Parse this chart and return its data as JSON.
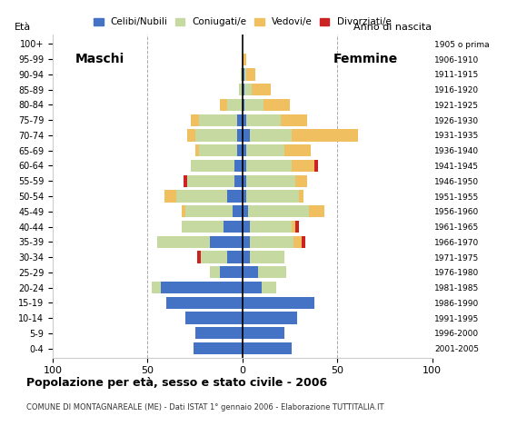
{
  "age_groups": [
    "0-4",
    "5-9",
    "10-14",
    "15-19",
    "20-24",
    "25-29",
    "30-34",
    "35-39",
    "40-44",
    "45-49",
    "50-54",
    "55-59",
    "60-64",
    "65-69",
    "70-74",
    "75-79",
    "80-84",
    "85-89",
    "90-94",
    "95-99",
    "100+"
  ],
  "birth_years": [
    "2001-2005",
    "1996-2000",
    "1991-1995",
    "1986-1990",
    "1981-1985",
    "1976-1980",
    "1971-1975",
    "1966-1970",
    "1961-1965",
    "1956-1960",
    "1951-1955",
    "1946-1950",
    "1941-1945",
    "1936-1940",
    "1931-1935",
    "1926-1930",
    "1921-1925",
    "1916-1920",
    "1911-1915",
    "1906-1910",
    "1905 o prima"
  ],
  "males": {
    "celibe": [
      26,
      25,
      30,
      40,
      43,
      12,
      8,
      17,
      10,
      5,
      8,
      4,
      4,
      3,
      3,
      3,
      0,
      0,
      0,
      0,
      0
    ],
    "coniugato": [
      0,
      0,
      0,
      0,
      5,
      5,
      14,
      28,
      22,
      25,
      27,
      25,
      23,
      20,
      22,
      20,
      8,
      2,
      1,
      0,
      0
    ],
    "vedovo": [
      0,
      0,
      0,
      0,
      0,
      0,
      0,
      0,
      0,
      2,
      6,
      0,
      0,
      2,
      4,
      4,
      4,
      0,
      0,
      0,
      0
    ],
    "divorziato": [
      0,
      0,
      0,
      0,
      0,
      0,
      2,
      0,
      0,
      0,
      0,
      2,
      0,
      0,
      0,
      0,
      0,
      0,
      0,
      0,
      0
    ]
  },
  "females": {
    "nubile": [
      26,
      22,
      29,
      38,
      10,
      8,
      4,
      4,
      4,
      3,
      2,
      2,
      2,
      2,
      4,
      2,
      1,
      1,
      1,
      0,
      0
    ],
    "coniugata": [
      0,
      0,
      0,
      0,
      8,
      15,
      18,
      23,
      22,
      32,
      28,
      26,
      24,
      20,
      22,
      18,
      10,
      4,
      1,
      0,
      0
    ],
    "vedova": [
      0,
      0,
      0,
      0,
      0,
      0,
      0,
      4,
      2,
      8,
      2,
      6,
      12,
      14,
      35,
      14,
      14,
      10,
      5,
      2,
      0
    ],
    "divorziata": [
      0,
      0,
      0,
      0,
      0,
      0,
      0,
      2,
      2,
      0,
      0,
      0,
      2,
      0,
      0,
      0,
      0,
      0,
      0,
      0,
      0
    ]
  },
  "colors": {
    "celibe_nubile": "#4472c4",
    "coniugato_coniugata": "#c5d9a0",
    "vedovo_vedova": "#f0c060",
    "divorziato_divorziata": "#cc2222"
  },
  "xlim": [
    -100,
    100
  ],
  "xticks": [
    -100,
    -50,
    0,
    50,
    100
  ],
  "xticklabels": [
    "100",
    "50",
    "0",
    "50",
    "100"
  ],
  "title": "Popolazione per età, sesso e stato civile - 2006",
  "subtitle": "COMUNE DI MONTAGNAREALE (ME) - Dati ISTAT 1° gennaio 2006 - Elaborazione TUTTITALIA.IT",
  "ylabel_left": "Età",
  "ylabel_right": "Anno di nascita",
  "label_maschi": "Maschi",
  "label_femmine": "Femmine",
  "legend_labels": [
    "Celibi/Nubili",
    "Coniugati/e",
    "Vedovi/e",
    "Divorziati/e"
  ],
  "background_color": "#ffffff",
  "bar_height": 0.8
}
